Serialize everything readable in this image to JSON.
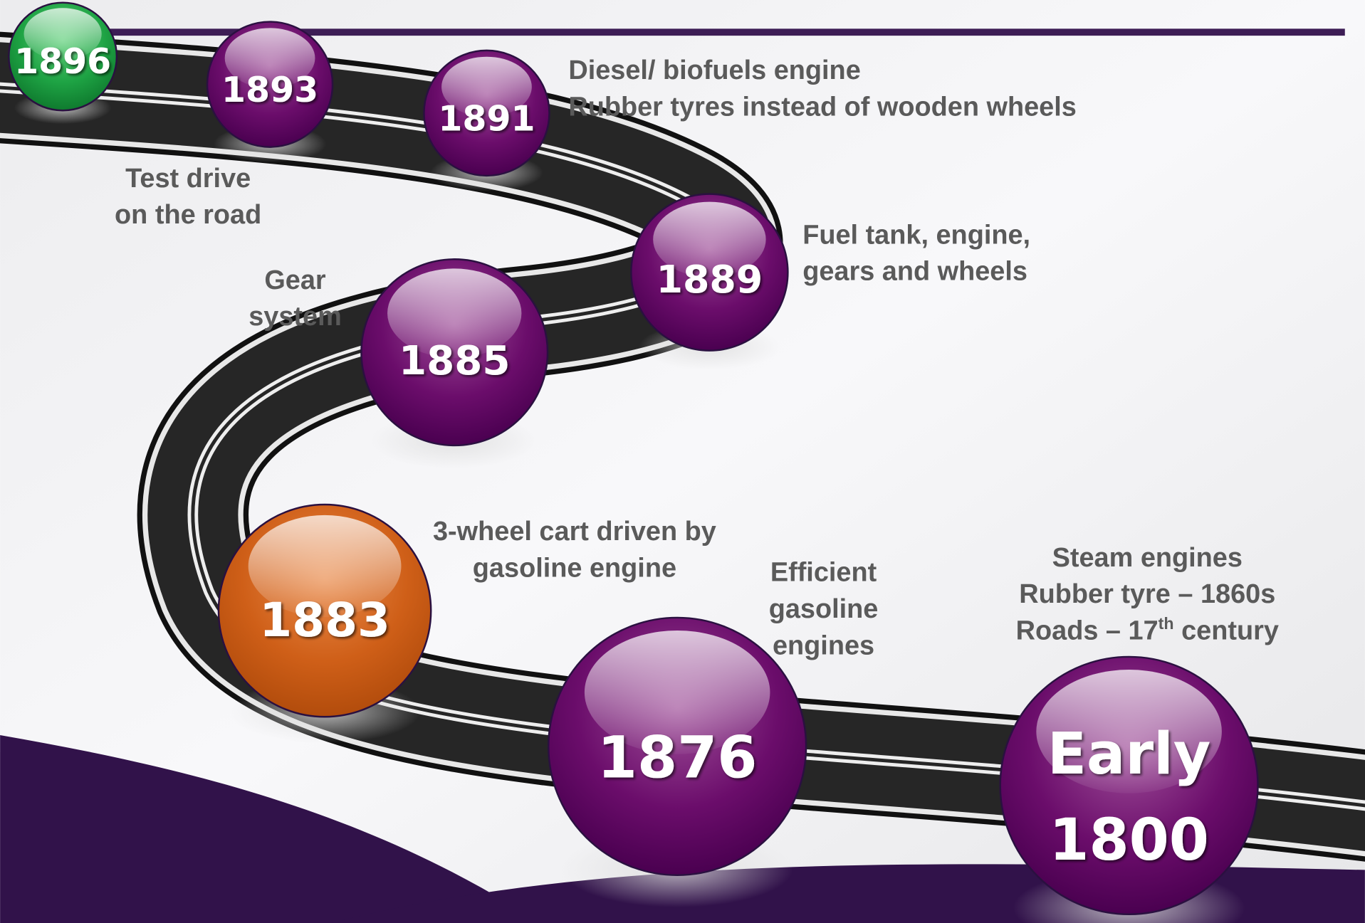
{
  "milestones": [
    {
      "label": [
        "1896"
      ],
      "description": []
    },
    {
      "label": [
        "1893"
      ],
      "description": [
        "Test drive",
        "on the road"
      ]
    },
    {
      "label": [
        "1891"
      ],
      "description": [
        "Diesel/ biofuels engine",
        "Rubber tyres instead of wooden wheels"
      ]
    },
    {
      "label": [
        "1889"
      ],
      "description": [
        "Fuel tank, engine,",
        "gears and wheels"
      ]
    },
    {
      "label": [
        "1885"
      ],
      "description": [
        "Gear",
        "system"
      ]
    },
    {
      "label": [
        "1883"
      ],
      "description": [
        "3-wheel cart driven by",
        "gasoline engine"
      ]
    },
    {
      "label": [
        "1876"
      ],
      "description": [
        "Efficient",
        "gasoline",
        "engines"
      ]
    },
    {
      "label": [
        "Early",
        "1800"
      ],
      "description": [
        "Steam engines",
        "Rubber tyre – 1860s",
        {
          "text": "Roads – 17",
          "sup": "th",
          "rest": " century"
        }
      ]
    }
  ]
}
